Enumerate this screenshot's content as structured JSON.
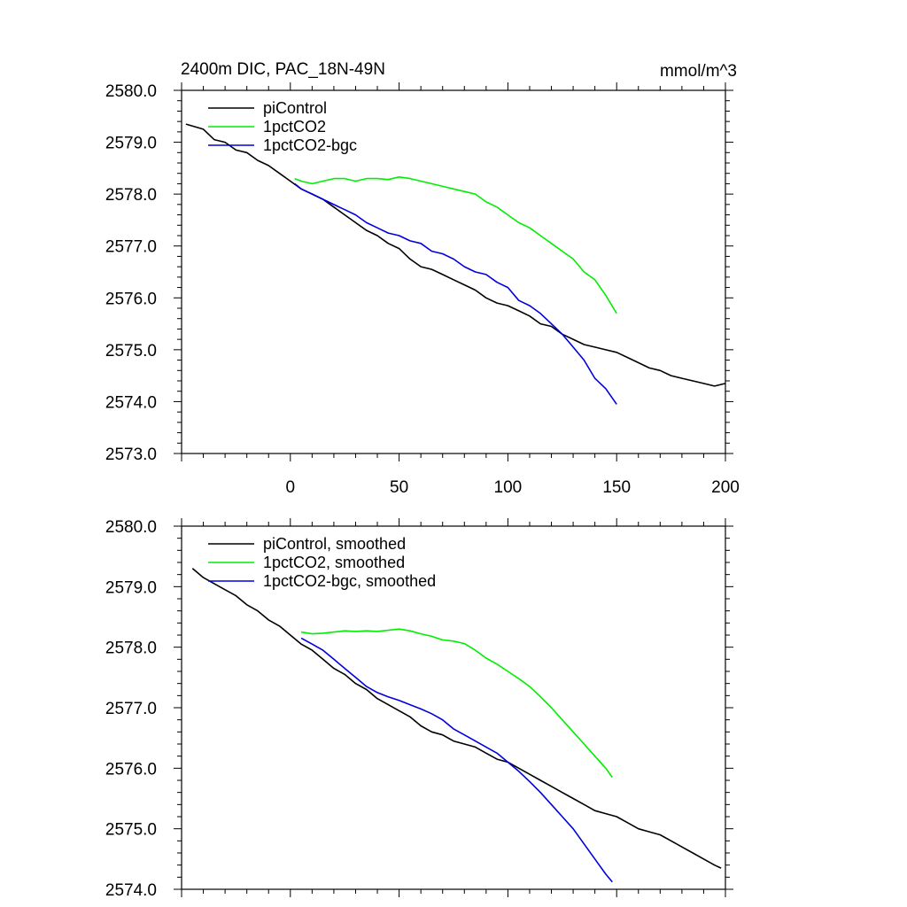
{
  "chart_data": [
    {
      "type": "line",
      "title": "2400m DIC, PAC_18N-49N",
      "units": "mmol/m^3",
      "xlim": [
        -50,
        200
      ],
      "ylim": [
        2573.0,
        2580.0
      ],
      "xticks": [
        0,
        50,
        100,
        150,
        200
      ],
      "xtick_labels": [
        "0",
        "50",
        "100",
        "150",
        "200"
      ],
      "yticks": [
        2573.0,
        2574.0,
        2575.0,
        2576.0,
        2577.0,
        2578.0,
        2579.0,
        2580.0
      ],
      "ytick_labels": [
        "2573.0",
        "2574.0",
        "2575.0",
        "2576.0",
        "2577.0",
        "2578.0",
        "2579.0",
        "2580.0"
      ],
      "legend_position": "top-left",
      "series": [
        {
          "name": "piControl",
          "color": "#000000",
          "x": [
            -48,
            -40,
            -35,
            -30,
            -25,
            -20,
            -15,
            -10,
            -5,
            0,
            5,
            10,
            15,
            20,
            25,
            30,
            35,
            40,
            45,
            50,
            55,
            60,
            65,
            70,
            75,
            80,
            85,
            90,
            95,
            100,
            105,
            110,
            115,
            120,
            125,
            130,
            135,
            140,
            145,
            150,
            155,
            160,
            165,
            170,
            175,
            180,
            185,
            190,
            195,
            200
          ],
          "y": [
            2579.35,
            2579.25,
            2579.05,
            2579.0,
            2578.85,
            2578.8,
            2578.65,
            2578.55,
            2578.4,
            2578.25,
            2578.1,
            2578.0,
            2577.9,
            2577.75,
            2577.6,
            2577.45,
            2577.3,
            2577.2,
            2577.05,
            2576.95,
            2576.75,
            2576.6,
            2576.55,
            2576.45,
            2576.35,
            2576.25,
            2576.15,
            2576.0,
            2575.9,
            2575.85,
            2575.75,
            2575.65,
            2575.5,
            2575.45,
            2575.3,
            2575.2,
            2575.1,
            2575.05,
            2575.0,
            2574.95,
            2574.85,
            2574.75,
            2574.65,
            2574.6,
            2574.5,
            2574.45,
            2574.4,
            2574.35,
            2574.3,
            2574.35
          ]
        },
        {
          "name": "1pctCO2",
          "color": "#00ee00",
          "x": [
            2,
            5,
            10,
            15,
            20,
            25,
            30,
            35,
            40,
            45,
            50,
            55,
            60,
            65,
            70,
            75,
            80,
            85,
            90,
            95,
            100,
            105,
            110,
            115,
            120,
            125,
            130,
            135,
            140,
            145,
            150
          ],
          "y": [
            2578.3,
            2578.25,
            2578.2,
            2578.25,
            2578.3,
            2578.3,
            2578.25,
            2578.3,
            2578.3,
            2578.28,
            2578.33,
            2578.3,
            2578.25,
            2578.2,
            2578.15,
            2578.1,
            2578.05,
            2578.0,
            2577.85,
            2577.75,
            2577.6,
            2577.45,
            2577.35,
            2577.2,
            2577.05,
            2576.9,
            2576.75,
            2576.5,
            2576.35,
            2576.05,
            2575.7
          ]
        },
        {
          "name": "1pctCO2-bgc",
          "color": "#0000dd",
          "x": [
            2,
            5,
            10,
            15,
            20,
            25,
            30,
            35,
            40,
            45,
            50,
            55,
            60,
            65,
            70,
            75,
            80,
            85,
            90,
            95,
            100,
            105,
            110,
            115,
            120,
            125,
            130,
            135,
            140,
            145,
            150
          ],
          "y": [
            2578.2,
            2578.1,
            2578.0,
            2577.9,
            2577.8,
            2577.7,
            2577.6,
            2577.45,
            2577.35,
            2577.25,
            2577.2,
            2577.1,
            2577.05,
            2576.9,
            2576.85,
            2576.75,
            2576.6,
            2576.5,
            2576.45,
            2576.3,
            2576.2,
            2575.95,
            2575.85,
            2575.7,
            2575.5,
            2575.3,
            2575.05,
            2574.8,
            2574.45,
            2574.25,
            2573.95
          ]
        }
      ]
    },
    {
      "type": "line",
      "title": "",
      "units": "",
      "xlim": [
        -50,
        200
      ],
      "ylim": [
        2574.0,
        2580.0
      ],
      "xticks": [
        0,
        50,
        100,
        150,
        200
      ],
      "xtick_labels": [],
      "yticks": [
        2574.0,
        2575.0,
        2576.0,
        2577.0,
        2578.0,
        2579.0,
        2580.0
      ],
      "ytick_labels": [
        "2574.0",
        "2575.0",
        "2576.0",
        "2577.0",
        "2578.0",
        "2579.0",
        "2580.0"
      ],
      "legend_position": "top-left",
      "series": [
        {
          "name": "piControl, smoothed",
          "color": "#000000",
          "x": [
            -45,
            -40,
            -35,
            -30,
            -25,
            -20,
            -15,
            -10,
            -5,
            0,
            5,
            10,
            15,
            20,
            25,
            30,
            35,
            40,
            45,
            50,
            55,
            60,
            65,
            70,
            75,
            80,
            85,
            90,
            95,
            100,
            105,
            110,
            115,
            120,
            125,
            130,
            135,
            140,
            145,
            150,
            155,
            160,
            165,
            170,
            175,
            180,
            185,
            190,
            195,
            198
          ],
          "y": [
            2579.3,
            2579.15,
            2579.05,
            2578.95,
            2578.85,
            2578.7,
            2578.6,
            2578.45,
            2578.35,
            2578.2,
            2578.05,
            2577.95,
            2577.8,
            2577.65,
            2577.55,
            2577.4,
            2577.3,
            2577.15,
            2577.05,
            2576.95,
            2576.85,
            2576.7,
            2576.6,
            2576.55,
            2576.45,
            2576.4,
            2576.35,
            2576.25,
            2576.15,
            2576.1,
            2576.0,
            2575.9,
            2575.8,
            2575.7,
            2575.6,
            2575.5,
            2575.4,
            2575.3,
            2575.25,
            2575.2,
            2575.1,
            2575.0,
            2574.95,
            2574.9,
            2574.8,
            2574.7,
            2574.6,
            2574.5,
            2574.4,
            2574.35
          ]
        },
        {
          "name": "1pctCO2, smoothed",
          "color": "#00ee00",
          "x": [
            5,
            10,
            15,
            20,
            25,
            30,
            35,
            40,
            45,
            50,
            55,
            60,
            65,
            70,
            75,
            80,
            85,
            90,
            95,
            100,
            105,
            110,
            115,
            120,
            125,
            130,
            135,
            140,
            145,
            148
          ],
          "y": [
            2578.25,
            2578.22,
            2578.23,
            2578.25,
            2578.27,
            2578.26,
            2578.27,
            2578.26,
            2578.28,
            2578.3,
            2578.27,
            2578.22,
            2578.18,
            2578.12,
            2578.1,
            2578.06,
            2577.95,
            2577.82,
            2577.72,
            2577.6,
            2577.48,
            2577.35,
            2577.18,
            2577.0,
            2576.8,
            2576.6,
            2576.4,
            2576.2,
            2576.0,
            2575.85
          ]
        },
        {
          "name": "1pctCO2-bgc, smoothed",
          "color": "#0000dd",
          "x": [
            5,
            10,
            15,
            20,
            25,
            30,
            35,
            40,
            45,
            50,
            55,
            60,
            65,
            70,
            75,
            80,
            85,
            90,
            95,
            100,
            105,
            110,
            115,
            120,
            125,
            130,
            135,
            140,
            145,
            148
          ],
          "y": [
            2578.15,
            2578.05,
            2577.95,
            2577.8,
            2577.65,
            2577.5,
            2577.35,
            2577.25,
            2577.18,
            2577.12,
            2577.05,
            2576.98,
            2576.9,
            2576.8,
            2576.65,
            2576.55,
            2576.45,
            2576.35,
            2576.25,
            2576.1,
            2575.95,
            2575.78,
            2575.6,
            2575.4,
            2575.2,
            2575.0,
            2574.75,
            2574.5,
            2574.25,
            2574.12
          ]
        }
      ]
    }
  ]
}
